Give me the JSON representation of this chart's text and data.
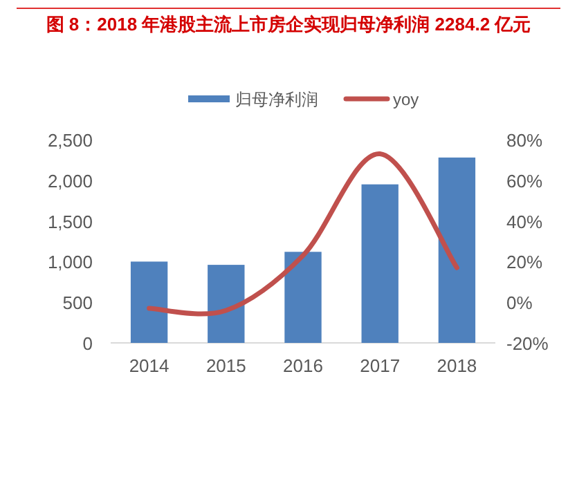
{
  "chart_data": {
    "type": "bar",
    "title": "图 8：2018 年港股主流上市房企实现归母净利润 2284.2 亿元",
    "categories": [
      "2014",
      "2015",
      "2016",
      "2017",
      "2018"
    ],
    "series": [
      {
        "name": "归母净利润",
        "color": "#4f81bd",
        "values": [
          1000,
          960,
          1120,
          1950,
          2280
        ]
      },
      {
        "name": "yoy",
        "type": "line",
        "axis": "y2",
        "color": "#c0504d",
        "values": [
          -3,
          -4,
          23,
          73,
          17
        ]
      }
    ],
    "ylim": [
      0,
      2500
    ],
    "yticks": [
      {
        "value": 0,
        "label": "0"
      },
      {
        "value": 500,
        "label": "500"
      },
      {
        "value": 1000,
        "label": "1,000"
      },
      {
        "value": 1500,
        "label": "1,500"
      },
      {
        "value": 2000,
        "label": "2,000"
      },
      {
        "value": 2500,
        "label": "2,500"
      }
    ],
    "y2lim": [
      -20,
      80
    ],
    "y2ticks": [
      {
        "value": -20,
        "label": "-20%"
      },
      {
        "value": 0,
        "label": "0%"
      },
      {
        "value": 20,
        "label": "20%"
      },
      {
        "value": 40,
        "label": "40%"
      },
      {
        "value": 60,
        "label": "60%"
      },
      {
        "value": 80,
        "label": "80%"
      }
    ],
    "grid": false,
    "legend": "top",
    "marker": "none",
    "line_style": "solid"
  }
}
